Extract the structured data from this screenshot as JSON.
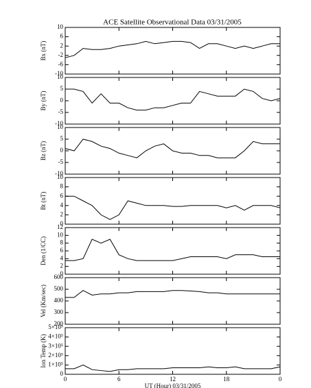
{
  "chart_data": [
    {
      "type": "line",
      "title": "ACE Satellite Observational Data   03/31/2005",
      "ylabel": "Bx (nT)",
      "color": "#000000",
      "x": [
        0,
        1,
        2,
        3,
        4,
        5,
        6,
        7,
        8,
        9,
        10,
        11,
        12,
        13,
        14,
        15,
        16,
        17,
        18,
        19,
        20,
        21,
        22,
        23,
        24
      ],
      "values": [
        -3,
        -2,
        1,
        0.5,
        0.5,
        1,
        2,
        2.5,
        3,
        4,
        3,
        3.5,
        4,
        4,
        3.5,
        1,
        3,
        3,
        2,
        1,
        2,
        1,
        2,
        3,
        3
      ],
      "xlim": [
        0,
        24
      ],
      "ylim": [
        -10,
        10
      ],
      "yticks": [
        -10,
        -6,
        -2,
        2,
        6,
        10
      ]
    },
    {
      "type": "line",
      "ylabel": "By (nT)",
      "color": "#000000",
      "x": [
        0,
        1,
        2,
        3,
        4,
        5,
        6,
        7,
        8,
        9,
        10,
        11,
        12,
        13,
        14,
        15,
        16,
        17,
        18,
        19,
        20,
        21,
        22,
        23,
        24
      ],
      "values": [
        5,
        5,
        4,
        -1,
        3,
        -1,
        -1,
        -3,
        -4,
        -4,
        -3,
        -3,
        -2,
        -1,
        -1,
        4,
        3,
        2,
        2,
        2,
        5,
        4,
        1,
        0,
        1
      ],
      "xlim": [
        0,
        24
      ],
      "ylim": [
        -10,
        10
      ],
      "yticks": [
        -10,
        -5,
        0,
        5,
        10
      ]
    },
    {
      "type": "line",
      "ylabel": "Bz (nT)",
      "color": "#000000",
      "x": [
        0,
        1,
        2,
        3,
        4,
        5,
        6,
        7,
        8,
        9,
        10,
        11,
        12,
        13,
        14,
        15,
        16,
        17,
        18,
        19,
        20,
        21,
        22,
        23,
        24
      ],
      "values": [
        1,
        0,
        5,
        4,
        2,
        1,
        -1,
        -2,
        -3,
        0,
        2,
        3,
        0,
        -1,
        -1,
        -2,
        -2,
        -3,
        -3,
        -3,
        0,
        4,
        3,
        3,
        3
      ],
      "xlim": [
        0,
        24
      ],
      "ylim": [
        -10,
        10
      ],
      "yticks": [
        -10,
        -5,
        0,
        5,
        10
      ]
    },
    {
      "type": "line",
      "ylabel": "Bt (nT)",
      "color": "#000000",
      "x": [
        0,
        1,
        2,
        3,
        4,
        5,
        6,
        7,
        8,
        9,
        10,
        11,
        12,
        13,
        14,
        15,
        16,
        17,
        18,
        19,
        20,
        21,
        22,
        23,
        24
      ],
      "values": [
        6,
        6,
        5,
        4,
        2,
        1,
        2,
        5,
        4.5,
        4,
        4,
        4,
        3.8,
        3.8,
        4,
        4,
        4,
        4,
        3.5,
        4,
        3,
        4,
        4,
        4,
        3.5
      ],
      "xlim": [
        0,
        24
      ],
      "ylim": [
        0,
        10
      ],
      "yticks": [
        0,
        2,
        4,
        6,
        8,
        10
      ]
    },
    {
      "type": "line",
      "ylabel": "Den (1/CC)",
      "color": "#000000",
      "x": [
        0,
        1,
        2,
        3,
        4,
        5,
        6,
        7,
        8,
        9,
        10,
        11,
        12,
        13,
        14,
        15,
        16,
        17,
        18,
        19,
        20,
        21,
        22,
        23,
        24
      ],
      "values": [
        3.5,
        3.5,
        4,
        9,
        8,
        9,
        5,
        4,
        3.5,
        3.5,
        3.5,
        3.5,
        3.5,
        4,
        4.5,
        4.5,
        4.5,
        4.5,
        4,
        5,
        5,
        5,
        4.5,
        4.5,
        4.5
      ],
      "xlim": [
        0,
        24
      ],
      "ylim": [
        0,
        12
      ],
      "yticks": [
        0,
        2,
        4,
        6,
        8,
        10,
        12
      ]
    },
    {
      "type": "line",
      "ylabel": "Vel (Km/sec)",
      "color": "#000000",
      "x": [
        0,
        1,
        2,
        3,
        4,
        5,
        6,
        7,
        8,
        9,
        10,
        11,
        12,
        13,
        14,
        15,
        16,
        17,
        18,
        19,
        20,
        21,
        22,
        23,
        24
      ],
      "values": [
        430,
        430,
        490,
        450,
        460,
        460,
        470,
        470,
        480,
        480,
        480,
        480,
        490,
        490,
        485,
        480,
        470,
        470,
        460,
        460,
        460,
        460,
        460,
        460,
        460
      ],
      "xlim": [
        0,
        24
      ],
      "ylim": [
        200,
        600
      ],
      "yticks": [
        200,
        300,
        400,
        500,
        600
      ]
    },
    {
      "type": "line",
      "ylabel": "Ion Temp (K)",
      "xlabel": "UT (Hour)  03/31/2005",
      "color": "#000000",
      "x": [
        0,
        1,
        2,
        3,
        4,
        5,
        6,
        7,
        8,
        9,
        10,
        11,
        12,
        13,
        14,
        15,
        16,
        17,
        18,
        19,
        20,
        21,
        22,
        23,
        24
      ],
      "values": [
        60000,
        60000,
        100000,
        50000,
        40000,
        30000,
        50000,
        50000,
        60000,
        60000,
        60000,
        60000,
        70000,
        70000,
        70000,
        70000,
        80000,
        70000,
        70000,
        80000,
        60000,
        60000,
        60000,
        60000,
        80000
      ],
      "xlim": [
        0,
        24
      ],
      "ylim": [
        0,
        500000
      ],
      "yticks": [
        0,
        {
          "value": 100000,
          "label": "1×10⁵"
        },
        {
          "value": 200000,
          "label": "2×10⁵"
        },
        {
          "value": 300000,
          "label": "3×10⁵"
        },
        {
          "value": 400000,
          "label": "4×10⁵"
        },
        {
          "value": 500000,
          "label": "5×10⁵"
        }
      ],
      "xticks": [
        0,
        6,
        12,
        18,
        {
          "value": 24,
          "label": "0"
        }
      ]
    }
  ]
}
